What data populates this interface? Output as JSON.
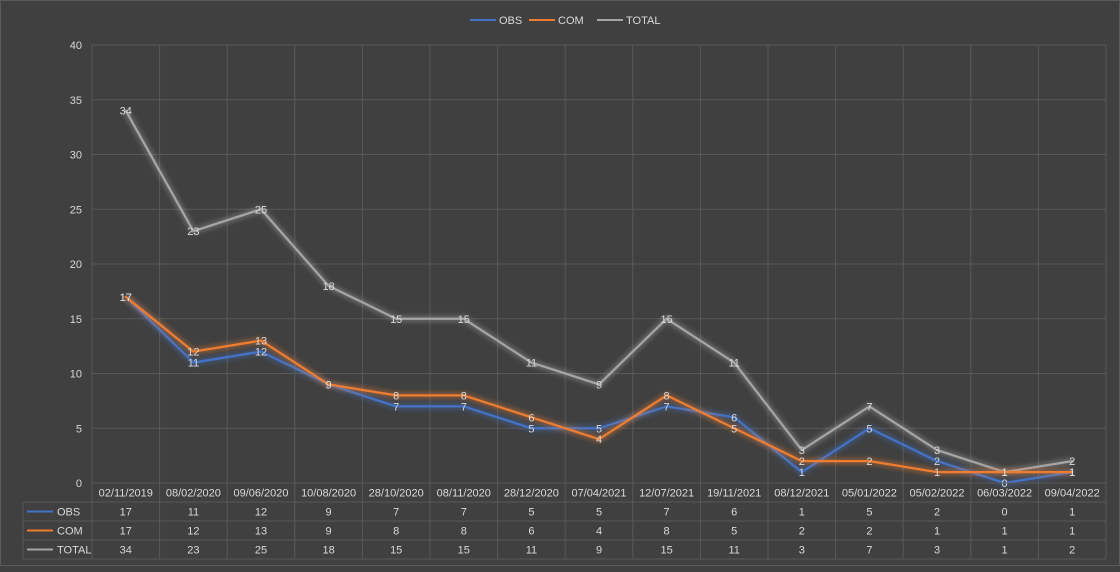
{
  "chart_data": {
    "type": "line",
    "title": "",
    "xlabel": "",
    "ylabel": "",
    "ylim": [
      0,
      40
    ],
    "yticks": [
      "0",
      "5",
      "10",
      "15",
      "20",
      "25",
      "30",
      "35",
      "40"
    ],
    "grid": true,
    "legend_position": "top-center",
    "data_table": true,
    "categories": [
      "02/11/2019",
      "08/02/2020",
      "09/06/2020",
      "10/08/2020",
      "28/10/2020",
      "08/11/2020",
      "28/12/2020",
      "07/04/2021",
      "12/07/2021",
      "19/11/2021",
      "08/12/2021",
      "05/01/2022",
      "05/02/2022",
      "06/03/2022",
      "09/04/2022"
    ],
    "series": [
      {
        "name": "OBS",
        "color": "#4472C4",
        "values": [
          17,
          11,
          12,
          9,
          7,
          7,
          5,
          5,
          7,
          6,
          1,
          5,
          2,
          0,
          1
        ]
      },
      {
        "name": "COM",
        "color": "#ED7D31",
        "values": [
          17,
          12,
          13,
          9,
          8,
          8,
          6,
          4,
          8,
          5,
          2,
          2,
          1,
          1,
          1
        ]
      },
      {
        "name": "TOTAL",
        "color": "#A5A5A5",
        "values": [
          34,
          23,
          25,
          18,
          15,
          15,
          11,
          9,
          15,
          11,
          3,
          7,
          3,
          1,
          2
        ]
      }
    ]
  },
  "colors": {
    "background": "#404040",
    "gridline": "#595959",
    "text": "#D9D9D9"
  }
}
